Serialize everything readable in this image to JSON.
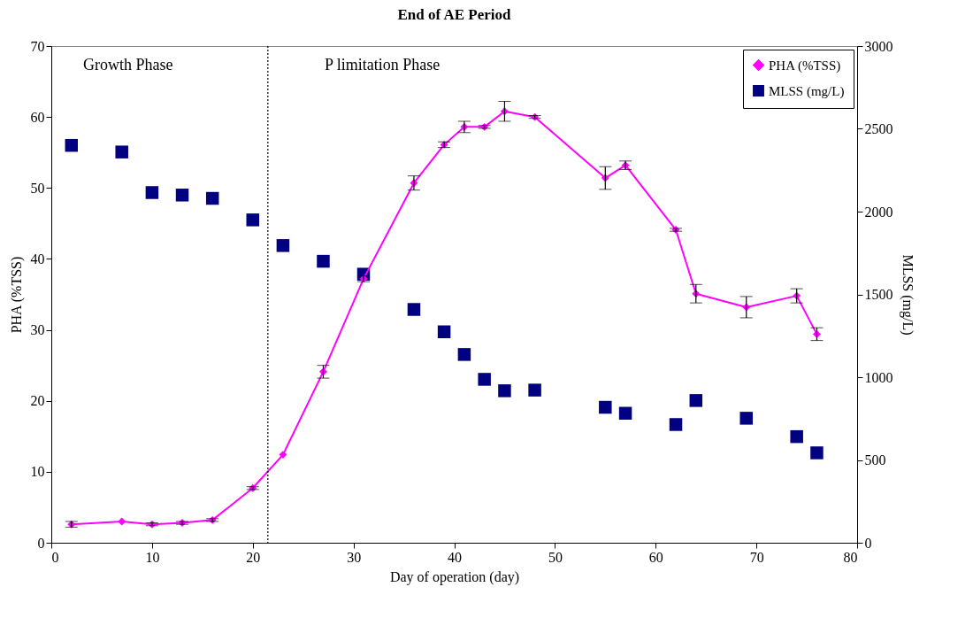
{
  "chart_data": {
    "type": "line",
    "title": "End of AE Period",
    "xlabel": "Day of operation (day)",
    "ylabel": "PHA (%TSS)",
    "y2label": "MLSS (mg/L)",
    "x": [
      2,
      7,
      10,
      13,
      16,
      20,
      23,
      27,
      31,
      36,
      39,
      41,
      43,
      45,
      48,
      55,
      57,
      62,
      64,
      69,
      74,
      76
    ],
    "series": [
      {
        "name": "PHA (%TSS)",
        "type": "line",
        "color": "#ff00ff",
        "marker": "diamond",
        "values": [
          2.6,
          3.0,
          2.6,
          2.8,
          3.2,
          7.7,
          12.4,
          24.1,
          37.2,
          50.7,
          56.1,
          58.6,
          58.6,
          60.8,
          60.0,
          51.4,
          53.2,
          44.1,
          35.1,
          33.2,
          34.8,
          29.4
        ],
        "errors": [
          0.4,
          null,
          0.2,
          0.2,
          0.2,
          0.2,
          null,
          0.9,
          0.4,
          1.0,
          0.4,
          0.8,
          0.2,
          1.4,
          0.2,
          1.6,
          0.6,
          0.2,
          1.3,
          1.5,
          1.0,
          0.9
        ]
      },
      {
        "name": "MLSS (mg/L)",
        "type": "scatter",
        "axis": "y2",
        "color": "#000080",
        "marker": "square",
        "values": [
          2400,
          2360,
          2115,
          2100,
          2080,
          1950,
          1795,
          1700,
          1622,
          1409,
          1274,
          1137,
          987,
          918,
          922,
          818,
          782,
          714,
          859,
          752,
          641,
          543
        ]
      }
    ],
    "xlim": [
      0,
      80
    ],
    "xticks": [
      0,
      10,
      20,
      30,
      40,
      50,
      60,
      70,
      80
    ],
    "ylim": [
      0,
      70
    ],
    "yticks": [
      0,
      10,
      20,
      30,
      40,
      50,
      60,
      70
    ],
    "y2lim": [
      0,
      3000
    ],
    "y2ticks": [
      0,
      500,
      1000,
      1500,
      2000,
      2500,
      3000
    ],
    "ref_lines": [
      {
        "axis": "x",
        "value": 21.5,
        "line_style": "dotted",
        "color": "#000000"
      }
    ],
    "annotations": [
      "Growth Phase",
      "P limitation Phase"
    ],
    "legend": "top right",
    "grid": false
  }
}
